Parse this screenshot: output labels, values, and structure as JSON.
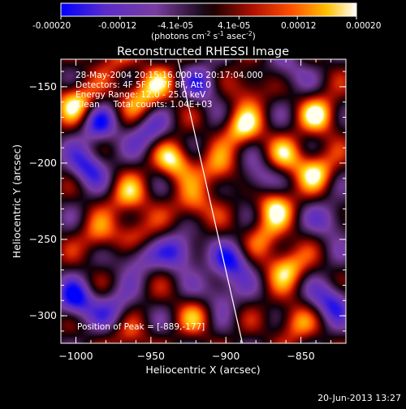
{
  "colorbar": {
    "ticks": [
      "-0.00020",
      "-0.00012",
      "-4.1e-05",
      "4.1e-05",
      "0.00012",
      "0.00020"
    ],
    "tick_values": [
      -0.0002,
      -0.00012,
      -4.1e-05,
      4.1e-05,
      0.00012,
      0.0002
    ],
    "range": [
      -0.0002,
      0.0002
    ],
    "units_prefix": "(photons cm",
    "units_exp1": "-2",
    "units_mid": " s",
    "units_exp2": "-1",
    "units_mid2": " asec",
    "units_exp3": "-2",
    "units_suffix": ")"
  },
  "chart_data": {
    "type": "heatmap",
    "title": "Reconstructed RHESSI Image",
    "xlabel": "Heliocentric X (arcsec)",
    "ylabel": "Heliocentric Y (arcsec)",
    "xlim": [
      -1010,
      -820
    ],
    "ylim": [
      -318,
      -132
    ],
    "x_ticks": [
      -1000,
      -950,
      -900,
      -850
    ],
    "x_tick_labels": [
      "−1000",
      "−950",
      "−900",
      "−850"
    ],
    "y_ticks": [
      -150,
      -200,
      -250,
      -300
    ],
    "y_tick_labels": [
      "−150",
      "−200",
      "−250",
      "−300"
    ],
    "annotations": [
      "28-May-2004 20:15:16.000 to 20:17:04.000",
      "Detectors: 4F 5F 6F 7F 8F, Att 0",
      "Energy Range: 12.0 - 25.0 keV",
      "Clean     Total counts: 1.04E+03"
    ],
    "peak_label": "Position of Peak = [-889,-177]",
    "peak_position": [
      -889,
      -177
    ],
    "limb_line": [
      [
        -932,
        -132
      ],
      [
        -889,
        -318
      ]
    ],
    "blobs": [
      {
        "x": -1000,
        "y": -160,
        "v": 1.0
      },
      {
        "x": -958,
        "y": -157,
        "v": 0.75
      },
      {
        "x": -945,
        "y": -147,
        "v": 0.55
      },
      {
        "x": -885,
        "y": -150,
        "v": 0.55
      },
      {
        "x": -838,
        "y": -168,
        "v": 0.95
      },
      {
        "x": -860,
        "y": -195,
        "v": 0.7
      },
      {
        "x": -840,
        "y": -205,
        "v": 0.9
      },
      {
        "x": -889,
        "y": -177,
        "v": 1.0
      },
      {
        "x": -935,
        "y": -198,
        "v": 1.0
      },
      {
        "x": -905,
        "y": -205,
        "v": 0.75
      },
      {
        "x": -922,
        "y": -228,
        "v": 0.7
      },
      {
        "x": -965,
        "y": -222,
        "v": 0.75
      },
      {
        "x": -868,
        "y": -228,
        "v": 0.9
      },
      {
        "x": -960,
        "y": -247,
        "v": 0.65
      },
      {
        "x": -985,
        "y": -248,
        "v": 0.6
      },
      {
        "x": -860,
        "y": -268,
        "v": 0.95
      },
      {
        "x": -875,
        "y": -248,
        "v": 0.6
      },
      {
        "x": -855,
        "y": -305,
        "v": 0.65
      },
      {
        "x": -920,
        "y": -300,
        "v": 0.55
      },
      {
        "x": -965,
        "y": -315,
        "v": 0.45
      },
      {
        "x": -975,
        "y": -130,
        "v": 0.5
      },
      {
        "x": -985,
        "y": -175,
        "v": -0.8
      },
      {
        "x": -915,
        "y": -148,
        "v": -0.7
      },
      {
        "x": -993,
        "y": -202,
        "v": -0.9
      },
      {
        "x": -952,
        "y": -180,
        "v": -0.7
      },
      {
        "x": -960,
        "y": -260,
        "v": -0.8
      },
      {
        "x": -1000,
        "y": -290,
        "v": -1.0
      },
      {
        "x": -930,
        "y": -258,
        "v": -0.9
      },
      {
        "x": -895,
        "y": -265,
        "v": -0.9
      },
      {
        "x": -905,
        "y": -285,
        "v": -0.6
      },
      {
        "x": -830,
        "y": -290,
        "v": -0.9
      },
      {
        "x": -830,
        "y": -237,
        "v": -0.6
      },
      {
        "x": -860,
        "y": -140,
        "v": -0.5
      },
      {
        "x": -880,
        "y": -210,
        "v": -0.7
      },
      {
        "x": -975,
        "y": -295,
        "v": -0.6
      }
    ]
  },
  "footer": {
    "timestamp": "20-Jun-2013 13:27"
  }
}
